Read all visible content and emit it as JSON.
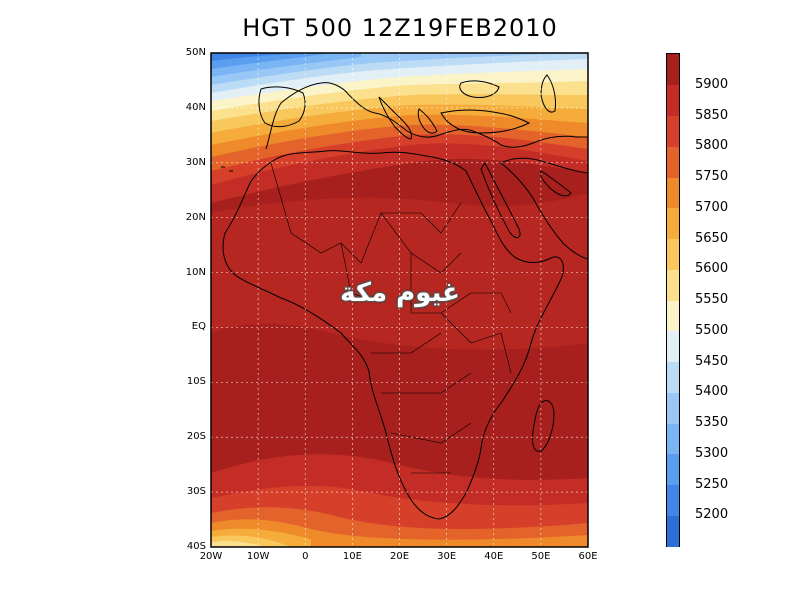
{
  "title": "HGT 500 12Z19FEB2010",
  "watermark_text": "غيوم مكة",
  "lat_labels": [
    "50N",
    "40N",
    "30N",
    "20N",
    "10N",
    "EQ",
    "10S",
    "20S",
    "30S",
    "40S"
  ],
  "lon_labels": [
    "20W",
    "10W",
    "0",
    "10E",
    "20E",
    "30E",
    "40E",
    "50E",
    "60E"
  ],
  "map_extent": {
    "lon_min": -20,
    "lon_max": 60,
    "lat_min": -40,
    "lat_max": 50
  },
  "colorbar": {
    "levels": [
      "5200",
      "5250",
      "5300",
      "5350",
      "5400",
      "5450",
      "5500",
      "5550",
      "5600",
      "5650",
      "5700",
      "5750",
      "5800",
      "5850",
      "5900"
    ],
    "colors": [
      "#2c6fd6",
      "#3f86e6",
      "#5a9ef0",
      "#79b4f4",
      "#99c8f6",
      "#bcdcf6",
      "#e2eff6",
      "#fbf4c9",
      "#fbe08d",
      "#f8c85d",
      "#f5ac3b",
      "#ef8a2a",
      "#e4632a",
      "#d6402a",
      "#c32d25",
      "#a8201d"
    ]
  },
  "contour_colors": {
    "c5200": "#2c6fd6",
    "c5250": "#3f86e6",
    "c5300": "#5a9ef0",
    "c5350": "#79b4f4",
    "c5400": "#99c8f6",
    "c5450": "#bcdcf6",
    "c5500": "#e2eff6",
    "c5550": "#fbf4c9",
    "c5600": "#fbe08d",
    "c5650": "#f8c85d",
    "c5700": "#f5ac3b",
    "c5750": "#ef8a2a",
    "c5800": "#e4632a",
    "c5850": "#d6402a",
    "c5900": "#c32d25",
    "c5950": "#a8201d"
  }
}
